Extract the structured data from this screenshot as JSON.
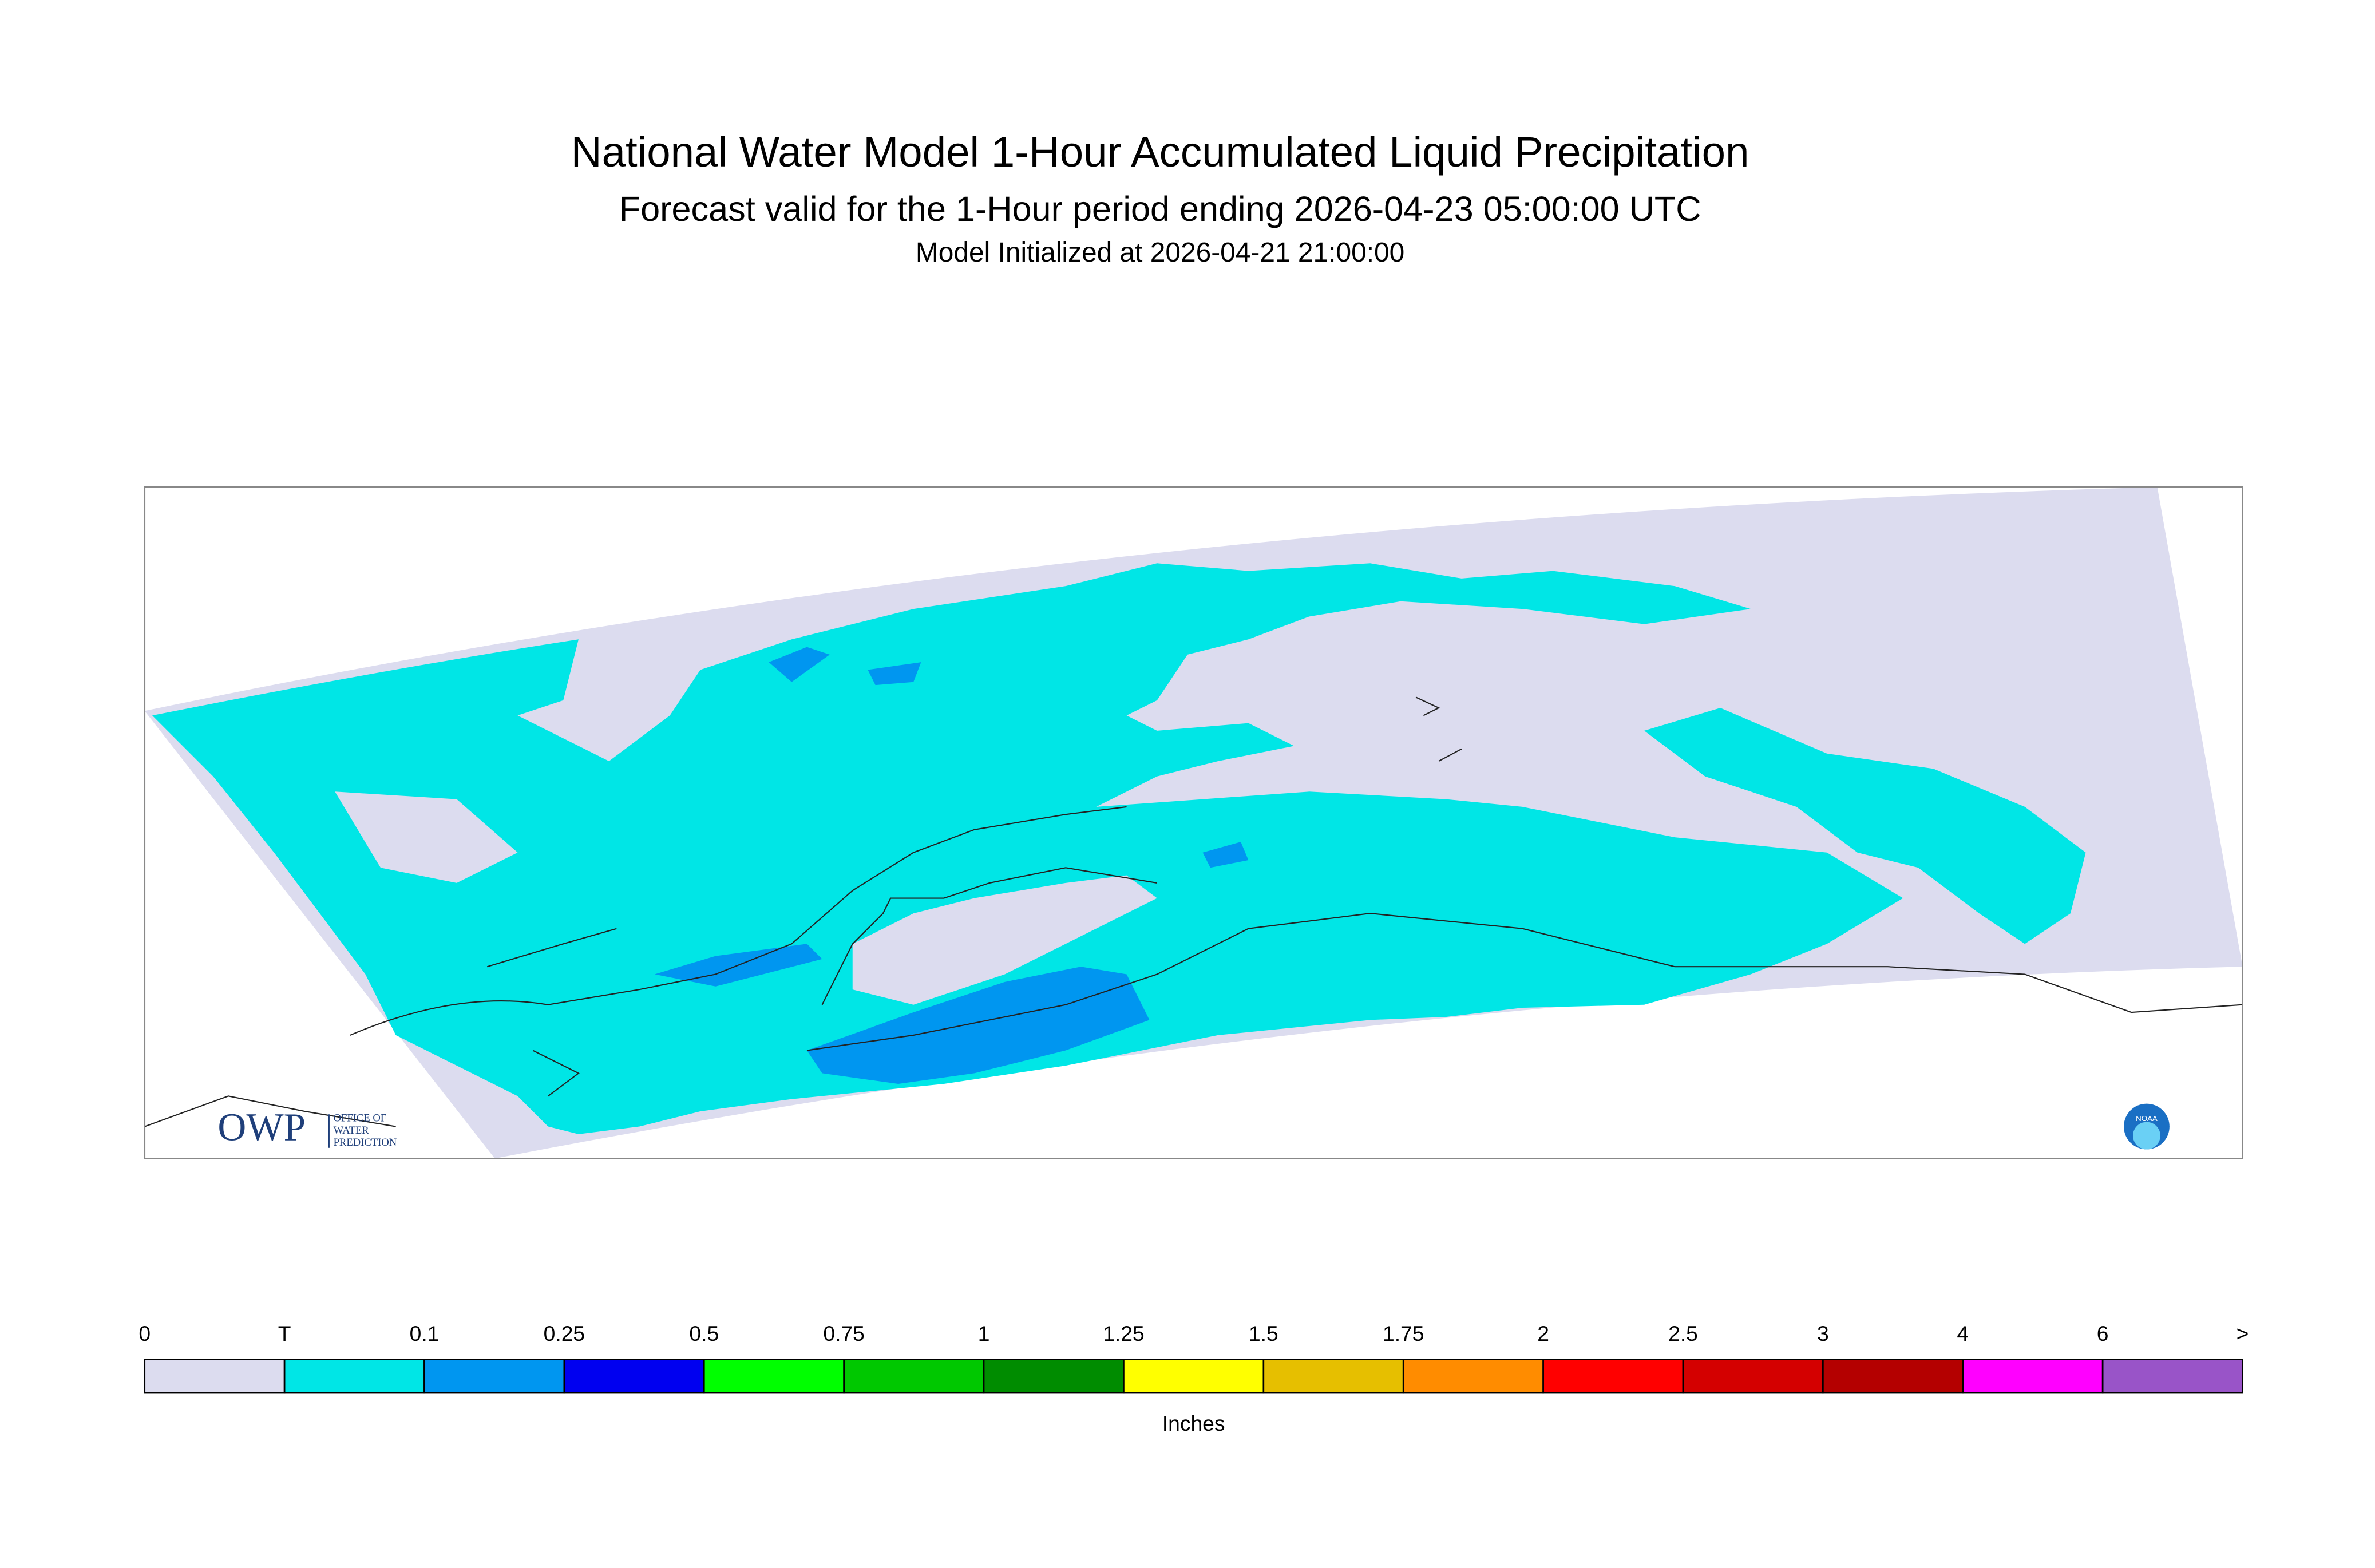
{
  "header": {
    "title": "National Water Model 1-Hour Accumulated Liquid Precipitation",
    "subtitle": "Forecast valid for the 1-Hour period ending 2026-04-23 05:00:00 UTC",
    "initialized": "Model Initialized at 2026-04-21 21:00:00"
  },
  "map": {
    "logo_text": "OWP",
    "logo_subtext": [
      "OFFICE OF",
      "WATER",
      "PREDICTION"
    ],
    "noaa_logo": "NOAA"
  },
  "legend": {
    "labels": [
      "0",
      "T",
      "0.1",
      "0.25",
      "0.5",
      "0.75",
      "1",
      "1.25",
      "1.5",
      "1.75",
      "2",
      "2.5",
      "3",
      "4",
      "6",
      ">"
    ],
    "colors": [
      "#dcdcef",
      "#00e6e6",
      "#0096f0",
      "#0000f0",
      "#00ff00",
      "#00c800",
      "#008c00",
      "#ffff00",
      "#e6bf00",
      "#ff8c00",
      "#ff0000",
      "#d40000",
      "#b40000",
      "#ff00ff",
      "#9954c8"
    ],
    "unit": "Inches"
  }
}
